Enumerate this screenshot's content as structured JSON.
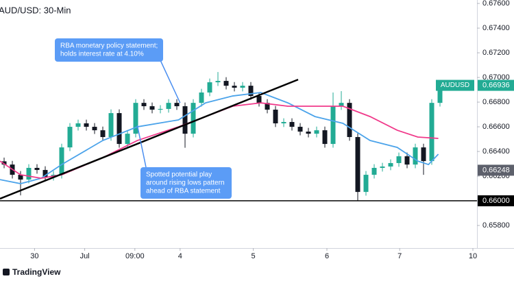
{
  "chart_data": {
    "type": "candlestick",
    "title": "AUD/USD: 30-Min",
    "branding": "TradingView",
    "x": [
      0,
      1,
      2,
      3,
      4,
      5,
      6,
      7,
      8,
      9,
      10,
      11,
      12,
      13,
      14,
      15,
      16,
      17,
      18,
      19,
      20,
      21,
      22,
      23,
      24,
      25,
      26,
      27,
      28,
      29,
      30,
      31,
      32,
      33,
      34,
      35,
      36,
      37,
      38,
      39,
      40,
      41,
      42,
      43,
      44,
      45,
      46,
      47,
      48,
      49,
      50,
      51,
      52,
      53
    ],
    "open": [
      0.6632,
      0.66294,
      0.66211,
      0.66172,
      0.66267,
      0.6625,
      0.66194,
      0.66211,
      0.66433,
      0.666,
      0.66628,
      0.666,
      0.66572,
      0.66517,
      0.66711,
      0.66461,
      0.66544,
      0.66794,
      0.66767,
      0.66739,
      0.66745,
      0.66794,
      0.66767,
      0.66544,
      0.66794,
      0.66878,
      0.66961,
      0.66972,
      0.66933,
      0.66917,
      0.66933,
      0.6685,
      0.66794,
      0.66739,
      0.66628,
      0.66639,
      0.666,
      0.66561,
      0.66544,
      0.66572,
      0.66461,
      0.66767,
      0.66794,
      0.66517,
      0.66072,
      0.66211,
      0.66267,
      0.66278,
      0.66306,
      0.66361,
      0.66294,
      0.66433,
      0.66322,
      0.66794
    ],
    "high": [
      0.6635,
      0.66324,
      0.66241,
      0.66297,
      0.66297,
      0.6628,
      0.66241,
      0.66463,
      0.6663,
      0.66658,
      0.66658,
      0.6663,
      0.66602,
      0.66741,
      0.66741,
      0.66574,
      0.66824,
      0.66824,
      0.66797,
      0.66775,
      0.66824,
      0.66824,
      0.66797,
      0.66824,
      0.66908,
      0.66991,
      0.67044,
      0.67002,
      0.66963,
      0.66963,
      0.66963,
      0.6688,
      0.66824,
      0.66769,
      0.66669,
      0.66669,
      0.6663,
      0.66591,
      0.66602,
      0.66602,
      0.66878,
      0.66889,
      0.66824,
      0.66547,
      0.66241,
      0.66297,
      0.66308,
      0.66336,
      0.66391,
      0.66391,
      0.66463,
      0.66463,
      0.66824,
      0.66966
    ],
    "low": [
      0.66264,
      0.66181,
      0.66044,
      0.66142,
      0.6622,
      0.66164,
      0.66164,
      0.66181,
      0.66403,
      0.6657,
      0.6657,
      0.66542,
      0.66487,
      0.66487,
      0.66431,
      0.66431,
      0.66514,
      0.66737,
      0.66709,
      0.66709,
      0.66715,
      0.66737,
      0.6643,
      0.66514,
      0.66764,
      0.66848,
      0.66931,
      0.66903,
      0.66887,
      0.66887,
      0.6682,
      0.66764,
      0.66709,
      0.66598,
      0.66598,
      0.6657,
      0.66531,
      0.66514,
      0.66514,
      0.66431,
      0.66431,
      0.66737,
      0.66487,
      0.66,
      0.66042,
      0.66181,
      0.66237,
      0.66248,
      0.66276,
      0.66264,
      0.66264,
      0.66211,
      0.66292,
      0.66764
    ],
    "close": [
      0.66294,
      0.66211,
      0.66172,
      0.66267,
      0.6625,
      0.66194,
      0.66211,
      0.66433,
      0.666,
      0.66628,
      0.666,
      0.66572,
      0.66517,
      0.66711,
      0.66461,
      0.66544,
      0.66794,
      0.66767,
      0.66739,
      0.66745,
      0.66794,
      0.66767,
      0.66544,
      0.66794,
      0.66878,
      0.66961,
      0.66972,
      0.66933,
      0.66917,
      0.66933,
      0.6685,
      0.66794,
      0.66739,
      0.66628,
      0.66639,
      0.666,
      0.66561,
      0.66544,
      0.66572,
      0.66461,
      0.66767,
      0.66794,
      0.66517,
      0.66072,
      0.66211,
      0.66267,
      0.66278,
      0.66306,
      0.66361,
      0.66294,
      0.66433,
      0.66322,
      0.66794,
      0.66936
    ],
    "up_color": "#22ab94",
    "down_color": "#131722",
    "lines": [
      {
        "color": "#4ba3ea",
        "x": [
          -0.5,
          2,
          4.5,
          7,
          12,
          16.2,
          21.2,
          24.5,
          27.8,
          31.2,
          34.5,
          37.8,
          41.2,
          44.5,
          47.8,
          50.3,
          51.6,
          52.8
        ],
        "values": [
          0.66172,
          0.66139,
          0.66183,
          0.66294,
          0.66489,
          0.666,
          0.66656,
          0.66794,
          0.6685,
          0.66878,
          0.66794,
          0.66683,
          0.66628,
          0.66489,
          0.66433,
          0.66322,
          0.66294,
          0.66378
        ]
      },
      {
        "color": "#f0398a",
        "x": [
          -0.5,
          2,
          4.5,
          7,
          12,
          16.2,
          21.2,
          24.5,
          27.8,
          31.2,
          34.5,
          37.8,
          41.2,
          44.5,
          47.8,
          50.3,
          52.8
        ],
        "values": [
          0.66322,
          0.66211,
          0.66183,
          0.66211,
          0.6635,
          0.66489,
          0.666,
          0.66683,
          0.66767,
          0.66794,
          0.66767,
          0.66767,
          0.66767,
          0.66683,
          0.66572,
          0.66517,
          0.66506
        ]
      },
      {
        "color": "#000000",
        "x": [
          -0.5,
          35.75
        ],
        "values": [
          0.66017,
          0.66983
        ]
      }
    ],
    "support_level": {
      "value": 0.66,
      "label": "0.66000"
    },
    "price_tags": [
      {
        "name": "AUDUSD",
        "value": 0.66936,
        "color": "#22ab94"
      },
      {
        "value": 0.66248,
        "color": "#5d606b"
      },
      {
        "value": 0.66,
        "label": "0.66000",
        "color": "#000000"
      }
    ],
    "annotations": [
      {
        "lines": [
          "RBA monetary policy statement;",
          "holds interest rate at 4.10%"
        ],
        "point": [
          21.4,
          0.66794
        ]
      },
      {
        "lines": [
          "Spotted potential play",
          "around rising lows pattern",
          "ahead of RBA statement"
        ],
        "point": [
          16.2,
          0.66611
        ]
      }
    ],
    "xlim": [
      -0.5,
      57.5
    ],
    "ylim": [
      0.65617,
      0.67628
    ],
    "yticks": [
      {
        "value": 0.676,
        "label": "0.67600"
      },
      {
        "value": 0.674,
        "label": "0.67400"
      },
      {
        "value": 0.672,
        "label": "0.67200"
      },
      {
        "value": 0.67,
        "label": "0.67000"
      },
      {
        "value": 0.668,
        "label": "0.66800"
      },
      {
        "value": 0.666,
        "label": "0.66600"
      },
      {
        "value": 0.664,
        "label": "0.66400"
      },
      {
        "value": 0.662,
        "label": "0.66200"
      },
      {
        "value": 0.66,
        "label": "0.66000"
      },
      {
        "value": 0.658,
        "label": "0.65800"
      }
    ],
    "xticks": [
      {
        "value": 3.7,
        "label": "30"
      },
      {
        "value": 9.8,
        "label": "Jul"
      },
      {
        "value": 15.9,
        "label": "09:00"
      },
      {
        "value": 21.4,
        "label": "4"
      },
      {
        "value": 30.3,
        "label": "5"
      },
      {
        "value": 39.25,
        "label": "6"
      },
      {
        "value": 48.1,
        "label": "7"
      },
      {
        "value": 57,
        "label": "10"
      }
    ]
  }
}
